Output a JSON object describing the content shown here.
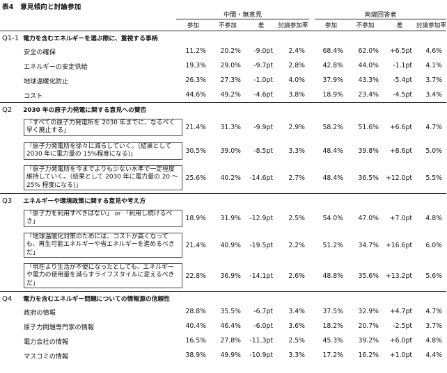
{
  "title": "表4　意見傾向と討論参加",
  "group_headers": [
    "中間・無意見",
    "両端回答者"
  ],
  "col_headers": [
    "参加",
    "不参加",
    "差",
    "討論参加率",
    "参加",
    "不参加",
    "差",
    "討論参加率"
  ],
  "sections": [
    {
      "id": "Q1-1",
      "question": "電力を含むエネルギーを選ぶ際に、重視する事柄",
      "rows": [
        {
          "label": "安全の確保",
          "values": [
            "11.2%",
            "20.2%",
            "-9.0pt",
            "2.4%",
            "68.4%",
            "62.0%",
            "+6.5pt",
            "4.6%"
          ]
        },
        {
          "label": "エネルギーの安定供給",
          "values": [
            "19.3%",
            "29.0%",
            "-9.7pt",
            "2.8%",
            "42.8%",
            "44.0%",
            "-1.1pt",
            "4.1%"
          ]
        },
        {
          "label": "地球温暖化防止",
          "values": [
            "26.3%",
            "27.3%",
            "-1.0pt",
            "4.0%",
            "37.9%",
            "43.3%",
            "-5.4pt",
            "3.7%"
          ]
        },
        {
          "label": "コスト",
          "values": [
            "44.6%",
            "49.2%",
            "-4.6pt",
            "3.8%",
            "18.9%",
            "23.4%",
            "-4.5pt",
            "3.4%"
          ]
        }
      ]
    },
    {
      "id": "Q2",
      "question": "2030 年の原子力発電に関する意見への賛否",
      "rows": [
        {
          "label": "「すべての原子力発電所を 2030 年までに、なるべく早く廃止する」",
          "values": [
            "21.4%",
            "31.3%",
            "-9.9pt",
            "2.9%",
            "58.2%",
            "51.6%",
            "+6.6pt",
            "4.7%"
          ]
        },
        {
          "label": "「原子力発電所を徐々に減らしていく。（結果として 2030 年に電力量の 15%程度になる)」",
          "values": [
            "30.5%",
            "39.0%",
            "-8.5pt",
            "3.3%",
            "48.4%",
            "39.8%",
            "+8.6pt",
            "5.0%"
          ]
        },
        {
          "label": "「原子力発電所を今までよりも少ない水準で一定程度維持していく。（結果として 2030 年に電力量の 20 ～ 25% 程度になる)」",
          "values": [
            "25.6%",
            "40.2%",
            "-14.6pt",
            "2.7%",
            "48.4%",
            "36.5%",
            "+12.0pt",
            "5.5%"
          ]
        }
      ]
    },
    {
      "id": "Q3",
      "question": "エネルギーや環境政策に関する意見や考え方",
      "rows": [
        {
          "label": "「原子力を利用すべきはない」 or 「利用し続けるべき」",
          "values": [
            "18.9%",
            "31.9%",
            "-12.9pt",
            "2.5%",
            "54.0%",
            "47.0%",
            "+7.0pt",
            "4.8%"
          ]
        },
        {
          "label": "「地球温暖化対策のためには、コストが高くなっても、再生可能エネルギーや省エネルギーを進めるべきだ」",
          "values": [
            "21.4%",
            "40.9%",
            "-19.5pt",
            "2.2%",
            "51.2%",
            "34.7%",
            "+16.6pt",
            "6.0%"
          ]
        },
        {
          "label": "「現在より生活が不便になったとしても、エネルギーや電力の使用量を減らすライフスタイルに変えるべきだ」",
          "values": [
            "22.8%",
            "36.9%",
            "-14.1pt",
            "2.6%",
            "48.8%",
            "35.6%",
            "+13.2pt",
            "5.6%"
          ]
        }
      ]
    },
    {
      "id": "Q4",
      "question": "電力を含むエネルギー問題についての情報源の信頼性",
      "rows": [
        {
          "label": "政府の情報",
          "values": [
            "28.8%",
            "35.5%",
            "-6.7pt",
            "3.4%",
            "37.5%",
            "32.9%",
            "+4.7pt",
            "4.7%"
          ]
        },
        {
          "label": "原子力問題専門家の情報",
          "values": [
            "40.4%",
            "46.4%",
            "-6.0pt",
            "3.6%",
            "18.2%",
            "20.7%",
            "-2.5pt",
            "3.7%"
          ]
        },
        {
          "label": "電力会社の情報",
          "values": [
            "16.5%",
            "27.8%",
            "-11.3pt",
            "2.5%",
            "45.3%",
            "39.2%",
            "+6.0pt",
            "4.8%"
          ]
        },
        {
          "label": "マスコミの情報",
          "values": [
            "38.9%",
            "49.9%",
            "-10.9pt",
            "3.3%",
            "17.2%",
            "16.2%",
            "+1.0pt",
            "4.4%"
          ]
        }
      ]
    }
  ]
}
